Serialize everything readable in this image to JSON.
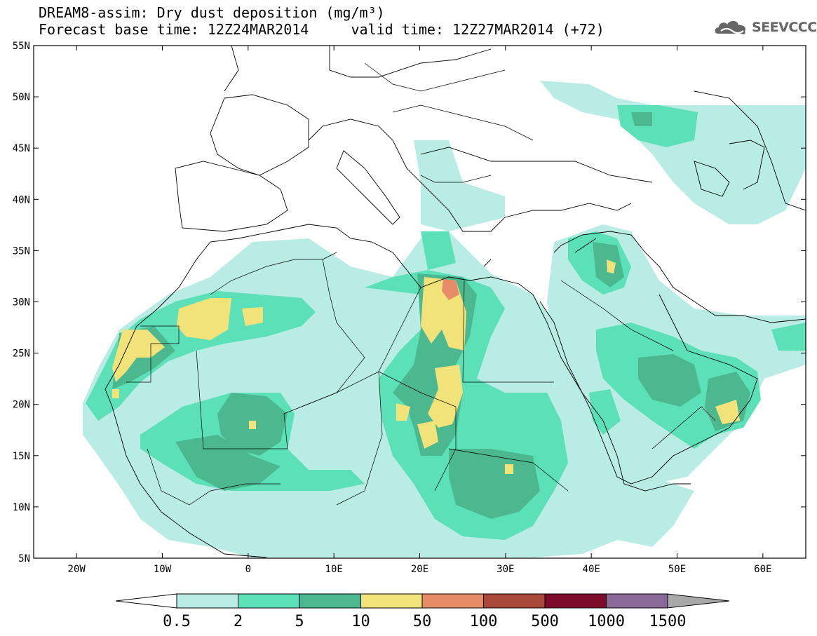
{
  "title_line1": "DREAM8-assim: Dry dust deposition (mg/m³)",
  "title_line2": "Forecast base time: 12Z24MAR2014     valid time: 12Z27MAR2014 (+72)",
  "logo_text": "SEEVCCC",
  "logo_icon": "cloud-logo-icon",
  "map": {
    "lon_range": [
      -25,
      65
    ],
    "lat_range": [
      5,
      55
    ],
    "y_ticks": [
      {
        "lat": 55,
        "label": "55N"
      },
      {
        "lat": 50,
        "label": "50N"
      },
      {
        "lat": 45,
        "label": "45N"
      },
      {
        "lat": 40,
        "label": "40N"
      },
      {
        "lat": 35,
        "label": "35N"
      },
      {
        "lat": 30,
        "label": "30N"
      },
      {
        "lat": 25,
        "label": "25N"
      },
      {
        "lat": 20,
        "label": "20N"
      },
      {
        "lat": 15,
        "label": "15N"
      },
      {
        "lat": 10,
        "label": "10N"
      },
      {
        "lat": 5,
        "label": "5N"
      }
    ],
    "x_ticks": [
      {
        "lon": -20,
        "label": "20W"
      },
      {
        "lon": -10,
        "label": "10W"
      },
      {
        "lon": 0,
        "label": "0"
      },
      {
        "lon": 10,
        "label": "10E"
      },
      {
        "lon": 20,
        "label": "20E"
      },
      {
        "lon": 30,
        "label": "30E"
      },
      {
        "lon": 40,
        "label": "40E"
      },
      {
        "lon": 50,
        "label": "50E"
      },
      {
        "lon": 60,
        "label": "60E"
      }
    ]
  },
  "colorbar": {
    "levels": [
      "0.5",
      "2",
      "5",
      "10",
      "50",
      "100",
      "500",
      "1000",
      "1500"
    ],
    "colors": [
      "#b8ece4",
      "#5ce0b8",
      "#4cb890",
      "#f2e27a",
      "#e88c68",
      "#a84838",
      "#7a0c2a",
      "#8a6898",
      "#a8a8a8"
    ],
    "under_color": "#ffffff"
  }
}
